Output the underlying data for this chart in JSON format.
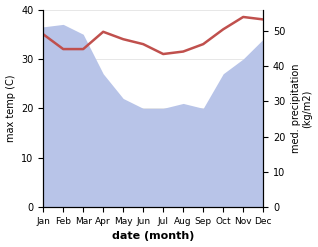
{
  "months": [
    "Jan",
    "Feb",
    "Mar",
    "Apr",
    "May",
    "Jun",
    "Jul",
    "Aug",
    "Sep",
    "Oct",
    "Nov",
    "Dec"
  ],
  "max_temp": [
    35.0,
    32.0,
    32.0,
    35.5,
    34.0,
    33.0,
    31.0,
    31.5,
    33.0,
    36.0,
    38.5,
    38.0
  ],
  "precipitation": [
    36.5,
    37.0,
    35.0,
    27.0,
    22.0,
    20.0,
    20.0,
    21.0,
    20.0,
    27.0,
    30.0,
    34.0
  ],
  "temp_color": "#c0504d",
  "precip_fill_color": "#b8c4e8",
  "temp_ylim": [
    0,
    40
  ],
  "temp_yticks": [
    0,
    10,
    20,
    30,
    40
  ],
  "precip_ylim": [
    0,
    56
  ],
  "precip_yticks": [
    0,
    10,
    20,
    30,
    40,
    50
  ],
  "xlabel": "date (month)",
  "ylabel_left": "max temp (C)",
  "ylabel_right": "med. precipitation\n(kg/m2)",
  "bg_color": "#ffffff"
}
